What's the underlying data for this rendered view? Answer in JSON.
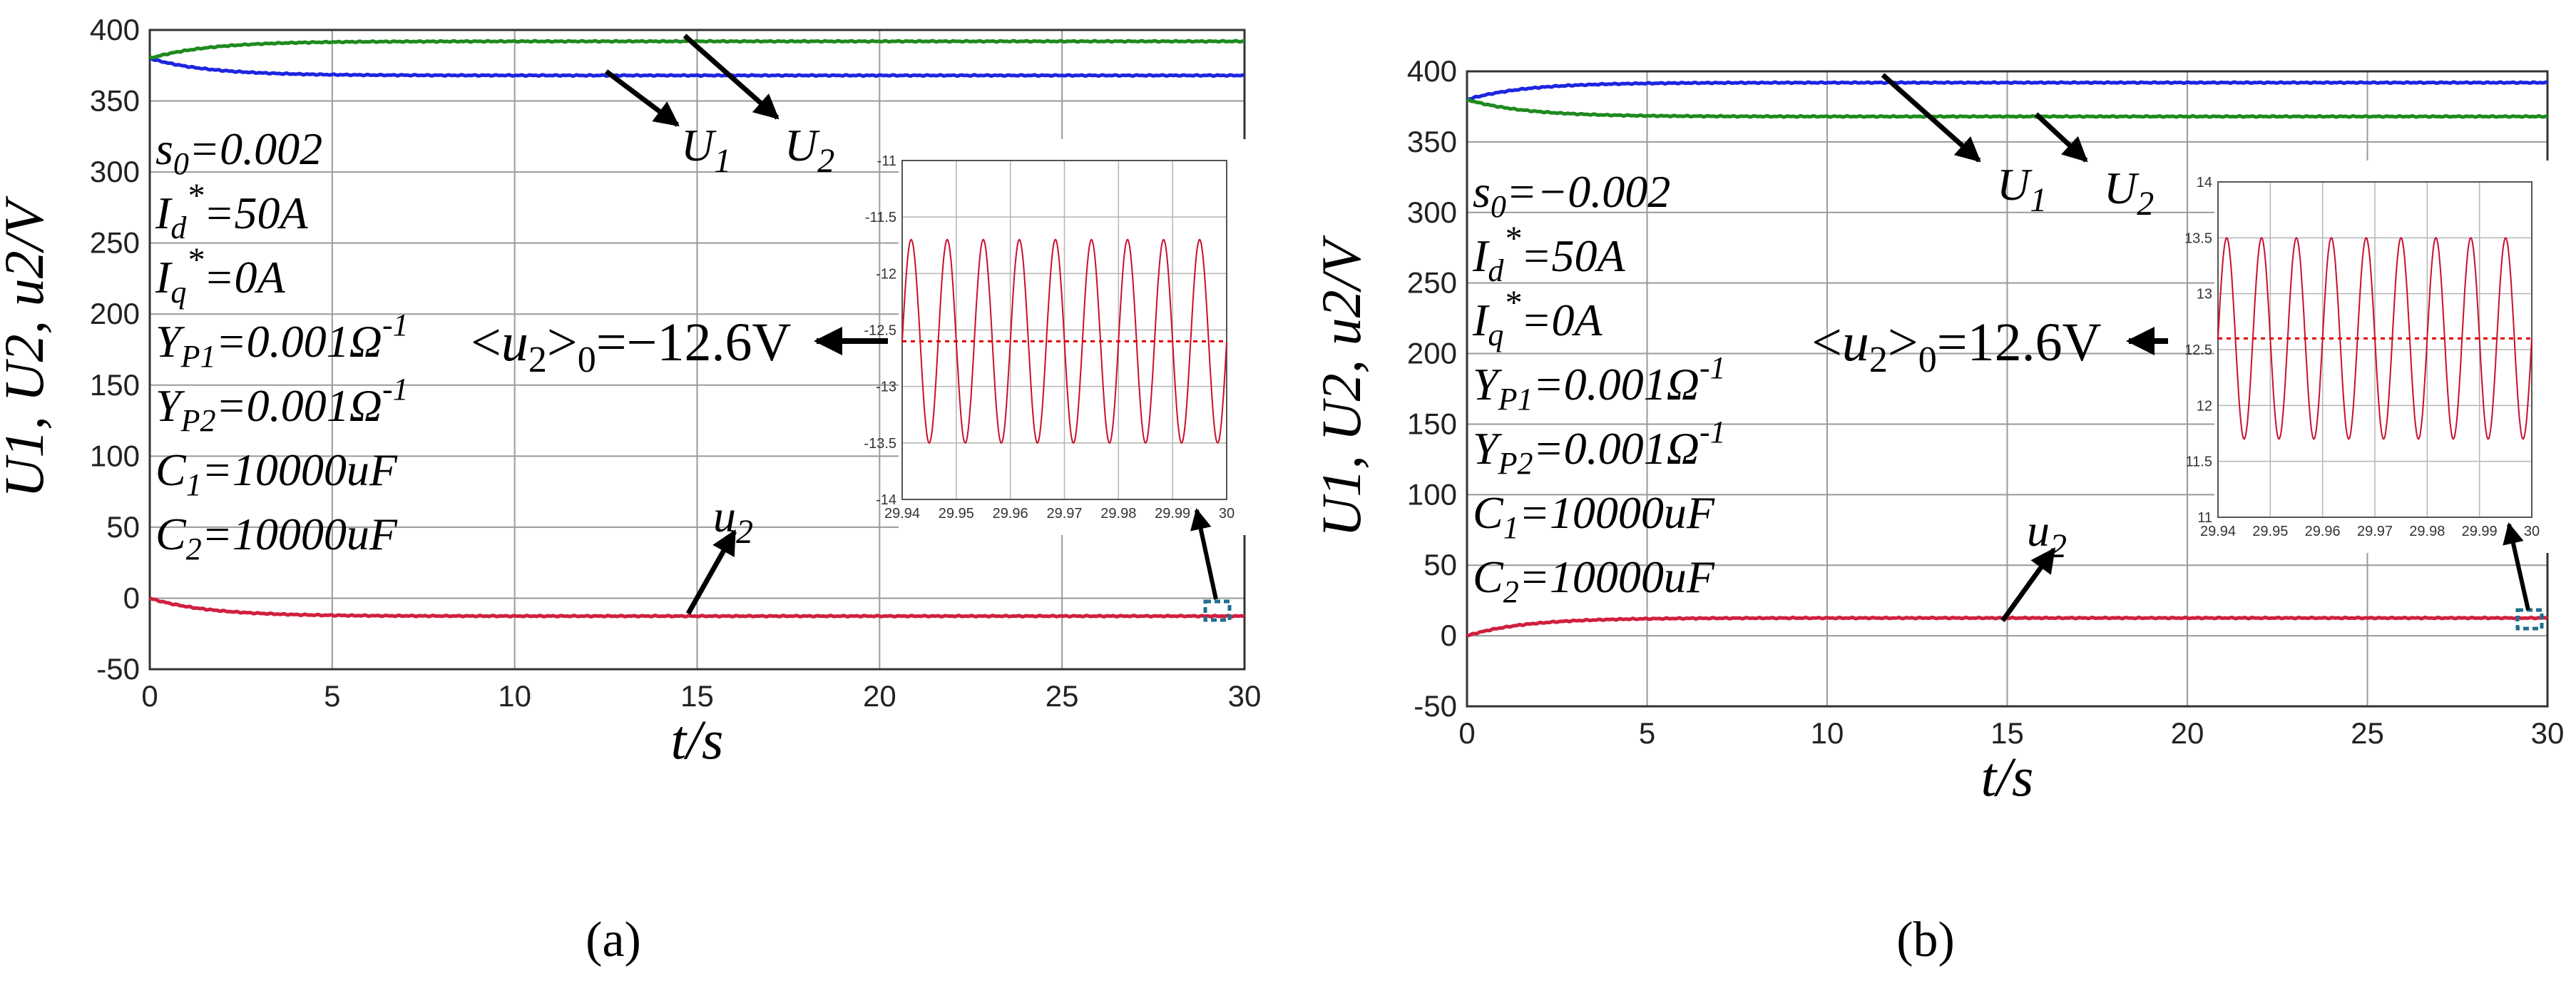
{
  "figure": {
    "caption_a": "(a)",
    "caption_b": "(b)"
  },
  "chart_data": [
    {
      "id": "a",
      "type": "line",
      "xlabel": "t/s",
      "ylabel": "U1, U2, u2/V",
      "xlim": [
        0,
        30
      ],
      "ylim": [
        -50,
        400
      ],
      "xticks": [
        "0",
        "5",
        "10",
        "15",
        "20",
        "25",
        "30"
      ],
      "yticks": [
        "-50",
        "0",
        "50",
        "100",
        "150",
        "200",
        "250",
        "300",
        "350",
        "400"
      ],
      "series": [
        {
          "name": "U1",
          "color": "#1c25e0",
          "start": 380,
          "end": 368,
          "tau": 1.6
        },
        {
          "name": "U2",
          "color": "#1f8a1f",
          "start": 380,
          "end": 392,
          "tau": 1.6
        },
        {
          "name": "u2",
          "color": "#d0203f",
          "start": 0,
          "end": -12.6,
          "tau": 1.6
        }
      ],
      "params": [
        "s0=0.002",
        "Id*=50A",
        "Iq*=0A",
        "YP1=0.001Ω-1",
        "YP2=0.001Ω-1",
        "C1=10000uF",
        "C2=10000uF"
      ],
      "labels": {
        "U1": "U1",
        "U2": "U2",
        "u2": "u2",
        "avg": "<u2>0=−12.6V"
      },
      "inset": {
        "xlim": [
          29.94,
          30
        ],
        "ylim": [
          -14,
          -11
        ],
        "xticks": [
          "29.94",
          "29.95",
          "29.96",
          "29.97",
          "29.98",
          "29.99",
          "30"
        ],
        "yticks": [
          "-11",
          "-11.5",
          "-12",
          "-12.5",
          "-13",
          "-13.5",
          "-14"
        ],
        "mean": -12.6,
        "amplitude": 0.9,
        "cycles": 9
      }
    },
    {
      "id": "b",
      "type": "line",
      "xlabel": "t/s",
      "ylabel": "U1, U2, u2/V",
      "xlim": [
        0,
        30
      ],
      "ylim": [
        -50,
        400
      ],
      "xticks": [
        "0",
        "5",
        "10",
        "15",
        "20",
        "25",
        "30"
      ],
      "yticks": [
        "-50",
        "0",
        "50",
        "100",
        "150",
        "200",
        "250",
        "300",
        "350",
        "400"
      ],
      "series": [
        {
          "name": "U1",
          "color": "#1c25e0",
          "start": 380,
          "end": 392,
          "tau": 1.6
        },
        {
          "name": "U2",
          "color": "#1f8a1f",
          "start": 380,
          "end": 368,
          "tau": 1.6
        },
        {
          "name": "u2",
          "color": "#d0203f",
          "start": 0,
          "end": 12.6,
          "tau": 1.6
        }
      ],
      "params": [
        "s0=−0.002",
        "Id*=50A",
        "Iq*=0A",
        "YP1=0.001Ω-1",
        "YP2=0.001Ω-1",
        "C1=10000uF",
        "C2=10000uF"
      ],
      "labels": {
        "U1": "U1",
        "U2": "U2",
        "u2": "u2",
        "avg": "<u2>0=12.6V"
      },
      "inset": {
        "xlim": [
          29.94,
          30
        ],
        "ylim": [
          11,
          14
        ],
        "xticks": [
          "29.94",
          "29.95",
          "29.96",
          "29.97",
          "29.98",
          "29.99",
          "30"
        ],
        "yticks": [
          "14",
          "13.5",
          "13",
          "12.5",
          "12",
          "11.5",
          "11"
        ],
        "mean": 12.6,
        "amplitude": 0.9,
        "cycles": 9
      }
    }
  ]
}
